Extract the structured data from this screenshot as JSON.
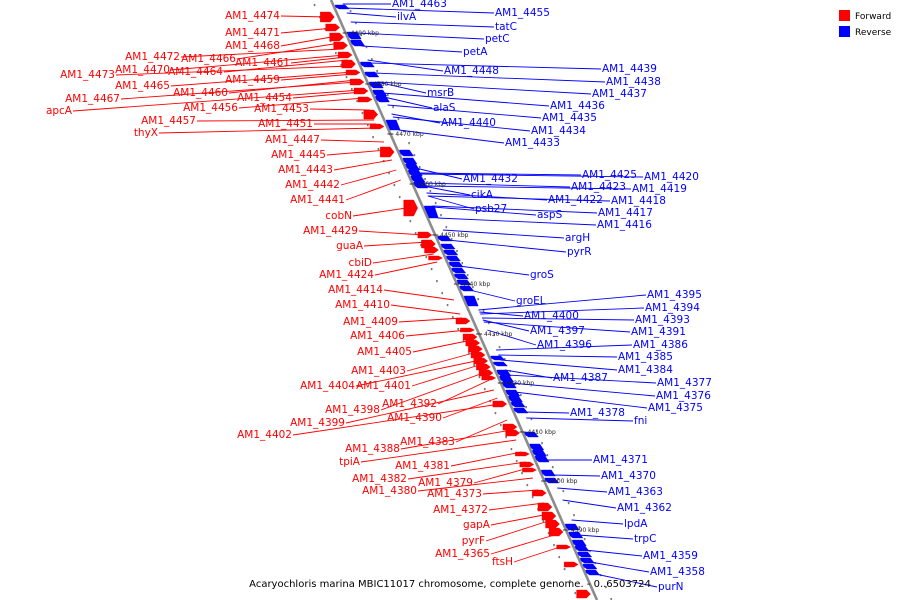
{
  "colors": {
    "forward": "#ff0000",
    "reverse": "#0000ff",
    "backbone": "#8c8c8c"
  },
  "legend": {
    "forward": "Forward",
    "reverse": "Reverse"
  },
  "caption": "Acaryochloris marina MBIC11017 chromosome, complete genome. - 0..6503724",
  "ticks": [
    "4490 kbp",
    "4480 kbp",
    "4470 kbp",
    "4460 kbp",
    "4450 kbp",
    "4440 kbp",
    "4430 kbp",
    "4420 kbp",
    "4410 kbp",
    "4400 kbp",
    "4390 kbp"
  ],
  "forward_labels": [
    "AM1_4474",
    "AM1_4471",
    "AM1_4468",
    "AM1_4466",
    "AM1_4472",
    "AM1_4470",
    "AM1_4464",
    "AM1_4473",
    "AM1_4465",
    "AM1_4459",
    "AM1_4467",
    "AM1_4454",
    "apcA",
    "AM1_4460",
    "AM1_4461",
    "AM1_4456",
    "AM1_4453",
    "AM1_4457",
    "thyX",
    "AM1_4451",
    "AM1_4447",
    "AM1_4445",
    "AM1_4443",
    "AM1_4442",
    "AM1_4441",
    "cobN",
    "AM1_4429",
    "guaA",
    "cbiD",
    "AM1_4424",
    "AM1_4414",
    "AM1_4410",
    "AM1_4409",
    "AM1_4406",
    "AM1_4405",
    "AM1_4403",
    "AM1_4404",
    "AM1_4401",
    "AM1_4398",
    "AM1_4392",
    "AM1_4399",
    "AM1_4390",
    "AM1_4402",
    "AM1_4383",
    "AM1_4388",
    "tpiA",
    "AM1_4381",
    "AM1_4382",
    "AM1_4379",
    "AM1_4380",
    "AM1_4373",
    "AM1_4372",
    "gapA",
    "pyrF",
    "AM1_4365",
    "ftsH"
  ],
  "reverse_labels": [
    "AM1_4463",
    "ilvA",
    "AM1_4455",
    "tatC",
    "petC",
    "petA",
    "AM1_4448",
    "msrB",
    "alaS",
    "AM1_4440",
    "AM1_4439",
    "AM1_4438",
    "AM1_4437",
    "AM1_4436",
    "AM1_4435",
    "AM1_4434",
    "AM1_4433",
    "AM1_4432",
    "cikA",
    "psb27",
    "aspS",
    "AM1_4425",
    "AM1_4423",
    "AM1_4422",
    "AM1_4420",
    "AM1_4419",
    "AM1_4418",
    "AM1_4417",
    "AM1_4416",
    "argH",
    "pyrR",
    "groS",
    "groEL",
    "AM1_4400",
    "AM1_4397",
    "AM1_4396",
    "AM1_4395",
    "AM1_4394",
    "AM1_4393",
    "AM1_4391",
    "AM1_4386",
    "AM1_4385",
    "AM1_4384",
    "AM1_4387",
    "AM1_4377",
    "AM1_4376",
    "AM1_4375",
    "AM1_4378",
    "fni",
    "AM1_4371",
    "AM1_4370",
    "AM1_4363",
    "AM1_4362",
    "lpdA",
    "trpC",
    "AM1_4359",
    "AM1_4358",
    "purN"
  ]
}
